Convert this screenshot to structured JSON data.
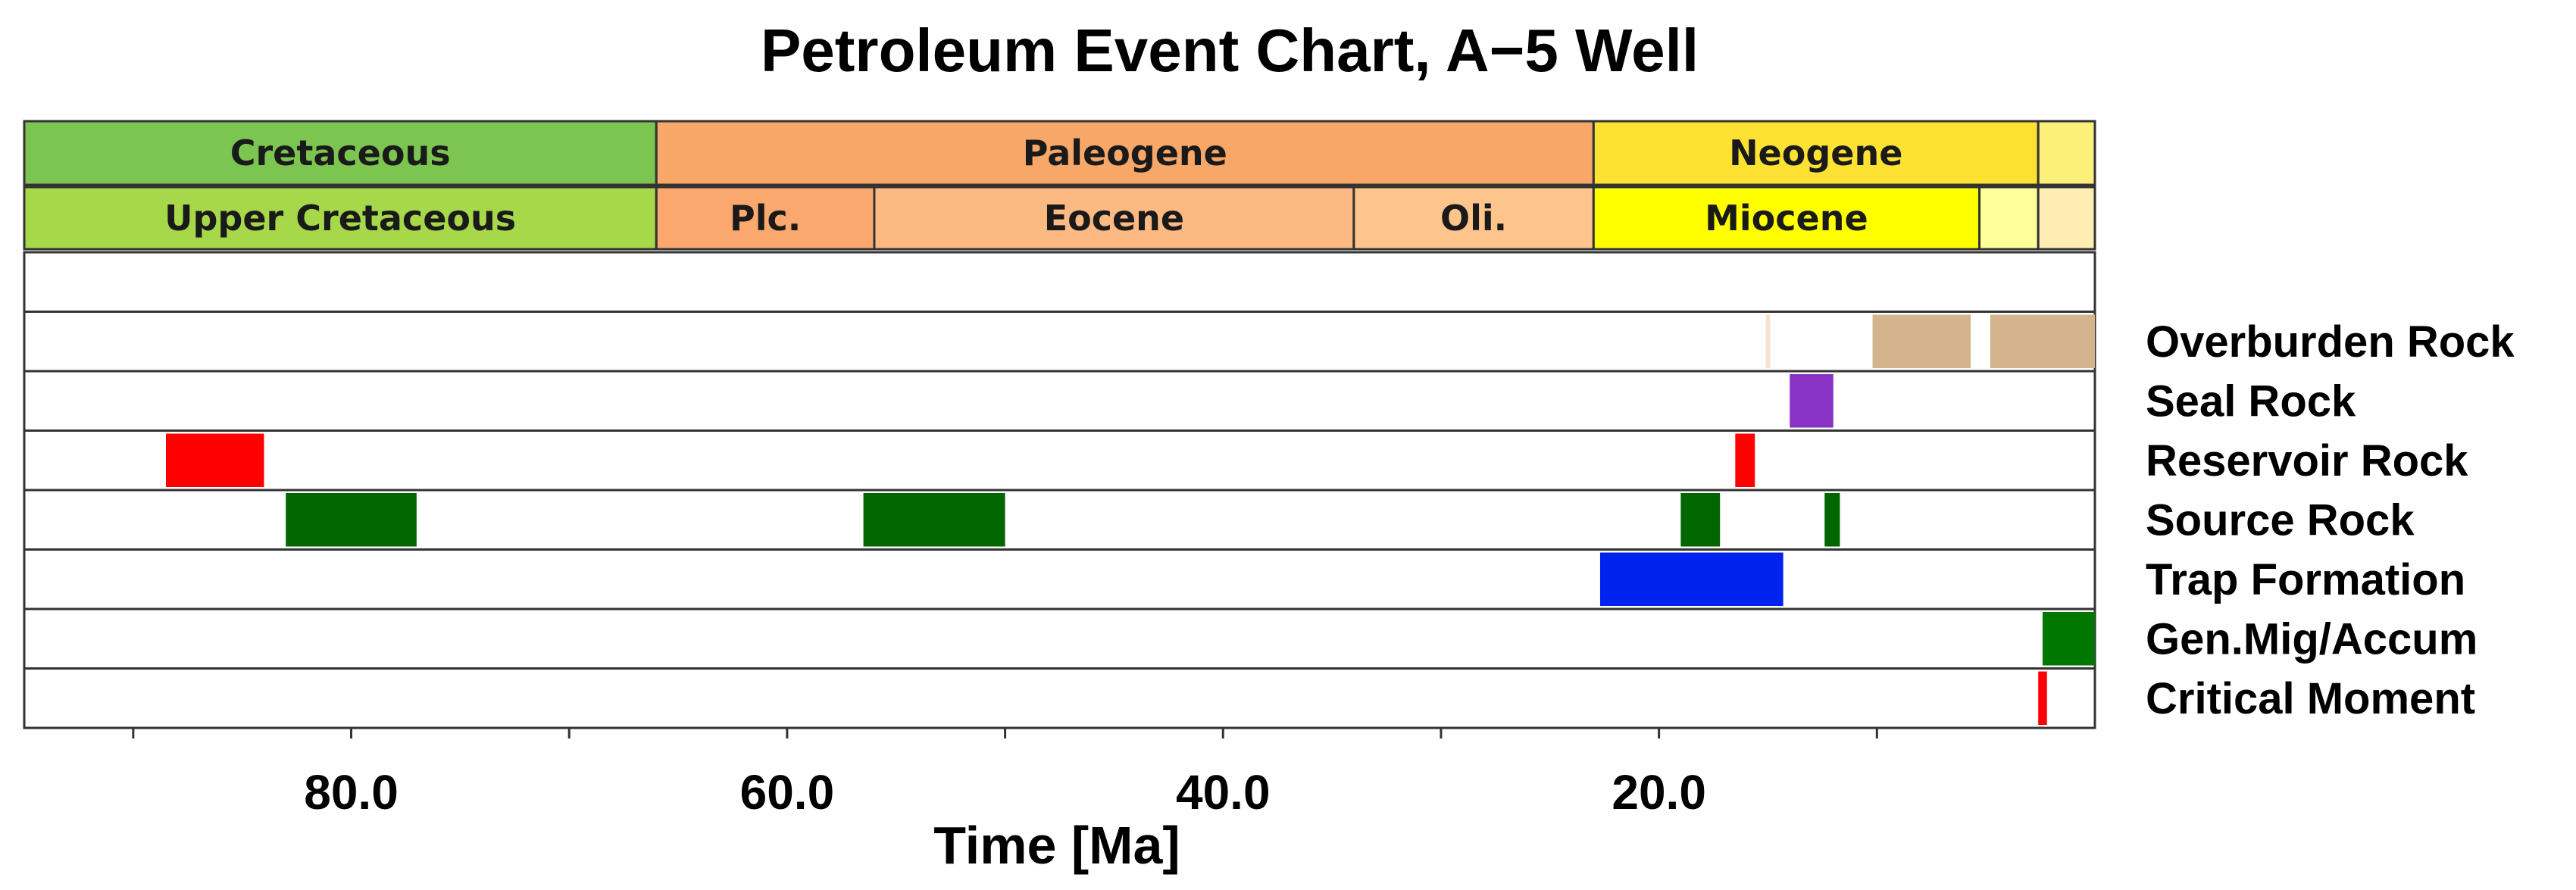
{
  "chart_data": {
    "type": "event-chart",
    "title": "Petroleum Event Chart, A−5 Well",
    "xlabel": "Time [Ma]",
    "xlim": [
      95,
      0
    ],
    "x_ticks": [
      90,
      80,
      70,
      60,
      50,
      40,
      30,
      20,
      10
    ],
    "x_tick_labels": [
      {
        "value": 80,
        "label": "80.0"
      },
      {
        "value": 60,
        "label": "60.0"
      },
      {
        "value": 40,
        "label": "40.0"
      },
      {
        "value": 20,
        "label": "20.0"
      }
    ],
    "time_scale": [
      {
        "level": "period",
        "name": "Cretaceous",
        "start": 95,
        "end": 66,
        "color": "#7cc551"
      },
      {
        "level": "period",
        "name": "Paleogene",
        "start": 66,
        "end": 23,
        "color": "#f7a768"
      },
      {
        "level": "period",
        "name": "Neogene",
        "start": 23,
        "end": 2.6,
        "color": "#fee233"
      },
      {
        "level": "period",
        "name": "",
        "start": 2.6,
        "end": 0,
        "color": "#fcf07a"
      },
      {
        "level": "epoch",
        "name": "Upper Cretaceous",
        "start": 95,
        "end": 66,
        "color": "#a6d84a"
      },
      {
        "level": "epoch",
        "name": "Plc.",
        "start": 66,
        "end": 56,
        "color": "#faa86d"
      },
      {
        "level": "epoch",
        "name": "Eocene",
        "start": 56,
        "end": 34,
        "color": "#fcb982"
      },
      {
        "level": "epoch",
        "name": "Oli.",
        "start": 34,
        "end": 23,
        "color": "#fdc58c"
      },
      {
        "level": "epoch",
        "name": "Miocene",
        "start": 23,
        "end": 5.3,
        "color": "#ffff00"
      },
      {
        "level": "epoch",
        "name": "",
        "start": 5.3,
        "end": 2.6,
        "color": "#ffff99"
      },
      {
        "level": "epoch",
        "name": "",
        "start": 2.6,
        "end": 0,
        "color": "#ffedb3"
      }
    ],
    "rows": [
      {
        "name": "",
        "events": []
      },
      {
        "name": "Overburden Rock",
        "events": [
          {
            "start": 15.1,
            "end": 14.9,
            "color": "#f5e3d0"
          },
          {
            "start": 10.2,
            "end": 5.7,
            "color": "#d4b48c"
          },
          {
            "start": 4.8,
            "end": 0,
            "color": "#d4b48c"
          }
        ]
      },
      {
        "name": "Seal Rock",
        "events": [
          {
            "start": 14,
            "end": 12,
            "color": "#8833c6"
          }
        ]
      },
      {
        "name": "Reservoir Rock",
        "events": [
          {
            "start": 88.5,
            "end": 84,
            "color": "#ff0000"
          },
          {
            "start": 16.5,
            "end": 15.6,
            "color": "#ff0000"
          }
        ]
      },
      {
        "name": "Source Rock",
        "events": [
          {
            "start": 83,
            "end": 77,
            "color": "#006600"
          },
          {
            "start": 56.5,
            "end": 50,
            "color": "#006600"
          },
          {
            "start": 19,
            "end": 17.2,
            "color": "#006600"
          },
          {
            "start": 12.4,
            "end": 11.7,
            "color": "#006600"
          }
        ]
      },
      {
        "name": "Trap Formation",
        "events": [
          {
            "start": 22.7,
            "end": 14.3,
            "color": "#0022ee"
          }
        ]
      },
      {
        "name": "Gen.Mig/Accum",
        "events": [
          {
            "start": 2.4,
            "end": 0,
            "color": "#007700"
          }
        ]
      },
      {
        "name": "Critical Moment",
        "events": [
          {
            "start": 2.6,
            "end": 2.2,
            "color": "#ff0000"
          }
        ]
      }
    ]
  }
}
